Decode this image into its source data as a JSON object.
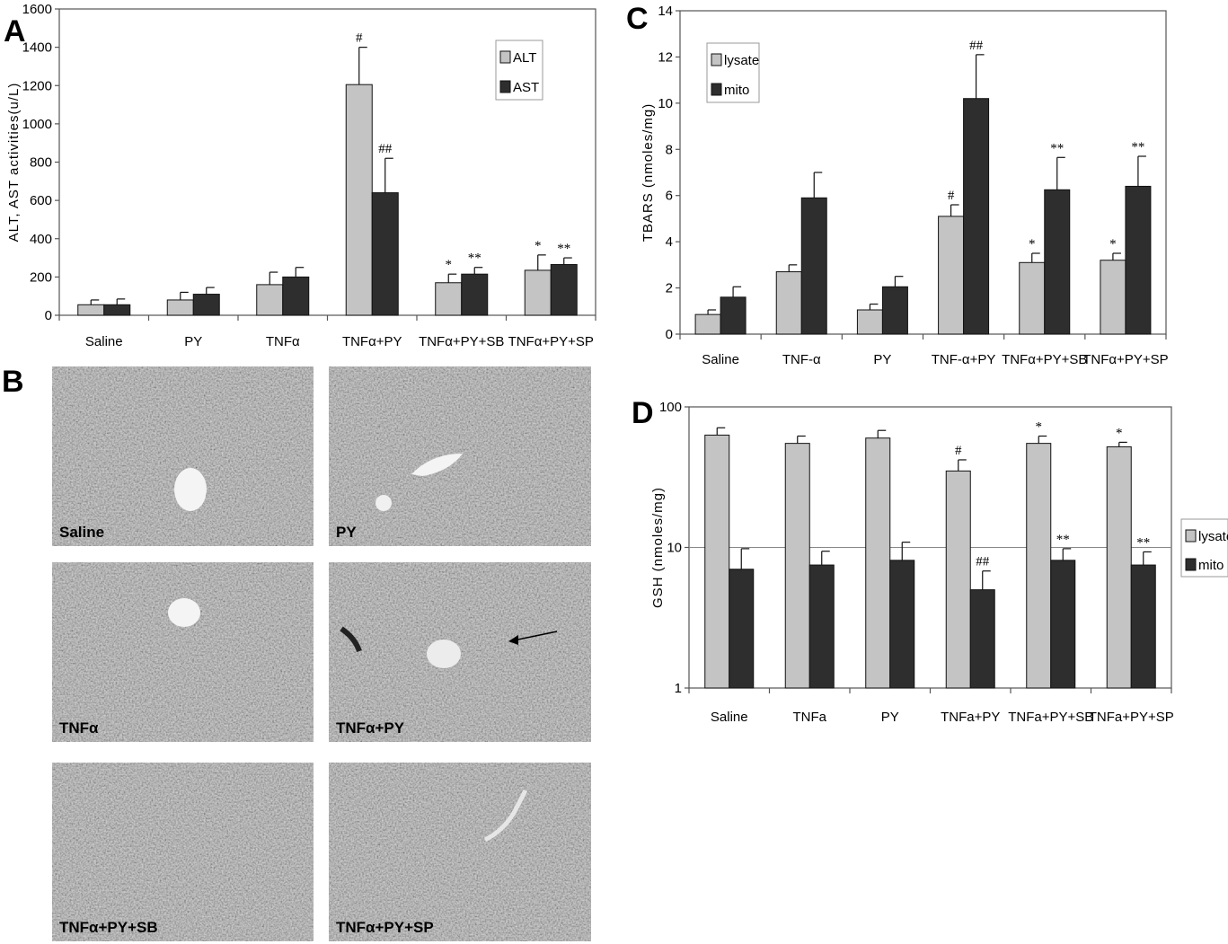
{
  "panel_labels": {
    "a": "A",
    "b": "B",
    "c": "C",
    "d": "D"
  },
  "colors": {
    "light": "#c4c4c4",
    "dark": "#2e2e2e",
    "axis": "#555555",
    "micro_bg": "#9c9c9c"
  },
  "chart_data": [
    {
      "id": "A",
      "type": "bar",
      "ylabel": "ALT, AST activities(u/L)",
      "ylim": [
        0,
        1600
      ],
      "yticks": [
        0,
        200,
        400,
        600,
        800,
        1000,
        1200,
        1400,
        1600
      ],
      "categories": [
        "Saline",
        "PY",
        "TNFα",
        "TNFα+PY",
        "TNFα+PY+SB",
        "TNFα+PY+SP"
      ],
      "series": [
        {
          "name": "ALT",
          "values": [
            55,
            80,
            160,
            1205,
            170,
            235
          ],
          "errors": [
            25,
            40,
            65,
            195,
            45,
            80
          ],
          "annotations": [
            "",
            "",
            "",
            "#",
            "*",
            "*"
          ]
        },
        {
          "name": "AST",
          "values": [
            55,
            110,
            200,
            640,
            215,
            265
          ],
          "errors": [
            30,
            35,
            50,
            180,
            35,
            35
          ],
          "annotations": [
            "",
            "",
            "",
            "##",
            "**",
            "**"
          ]
        }
      ],
      "legend": "top-right",
      "grid": false
    },
    {
      "id": "C",
      "type": "bar",
      "ylabel": "TBARS (nmoles/mg)",
      "ylim": [
        0,
        14
      ],
      "yticks": [
        0,
        2,
        4,
        6,
        8,
        10,
        12,
        14
      ],
      "categories": [
        "Saline",
        "TNF-α",
        "PY",
        "TNF-α+PY",
        "TNFα+PY+SB",
        "TNFα+PY+SP"
      ],
      "series": [
        {
          "name": "lysate",
          "values": [
            0.85,
            2.7,
            1.05,
            5.1,
            3.1,
            3.2
          ],
          "errors": [
            0.2,
            0.3,
            0.25,
            0.5,
            0.4,
            0.3
          ],
          "annotations": [
            "",
            "",
            "",
            "#",
            "*",
            "*"
          ]
        },
        {
          "name": "mito",
          "values": [
            1.6,
            5.9,
            2.05,
            10.2,
            6.25,
            6.4
          ],
          "errors": [
            0.45,
            1.1,
            0.45,
            1.9,
            1.4,
            1.3
          ],
          "annotations": [
            "",
            "",
            "",
            "##",
            "**",
            "**"
          ]
        }
      ],
      "legend": "top-left",
      "grid": false
    },
    {
      "id": "D",
      "type": "bar",
      "ylabel": "GSH (nmoles/mg)",
      "yscale": "log",
      "ylim": [
        1,
        100
      ],
      "yticks": [
        1,
        10,
        100
      ],
      "categories": [
        "Saline",
        "TNFa",
        "PY",
        "TNFa+PY",
        "TNFa+PY+SB",
        "TNFa+PY+SP"
      ],
      "series": [
        {
          "name": "lysate",
          "values": [
            63,
            55,
            60,
            35,
            55,
            52
          ],
          "errors": [
            8,
            7,
            8,
            7,
            7,
            4
          ],
          "annotations": [
            "",
            "",
            "",
            "#",
            "*",
            "*"
          ]
        },
        {
          "name": "mito",
          "values": [
            7,
            7.5,
            8.1,
            5,
            8.1,
            7.5
          ],
          "errors": [
            2.8,
            1.9,
            2.8,
            1.8,
            1.7,
            1.8
          ],
          "annotations": [
            "",
            "",
            "",
            "##",
            "**",
            "**"
          ]
        }
      ],
      "legend": "right",
      "grid": true
    }
  ],
  "micrographs": [
    {
      "label": "Saline"
    },
    {
      "label": "PY"
    },
    {
      "label": "TNFα"
    },
    {
      "label": "TNFα+PY"
    },
    {
      "label": "TNFα+PY+SB"
    },
    {
      "label": "TNFα+PY+SP"
    }
  ]
}
